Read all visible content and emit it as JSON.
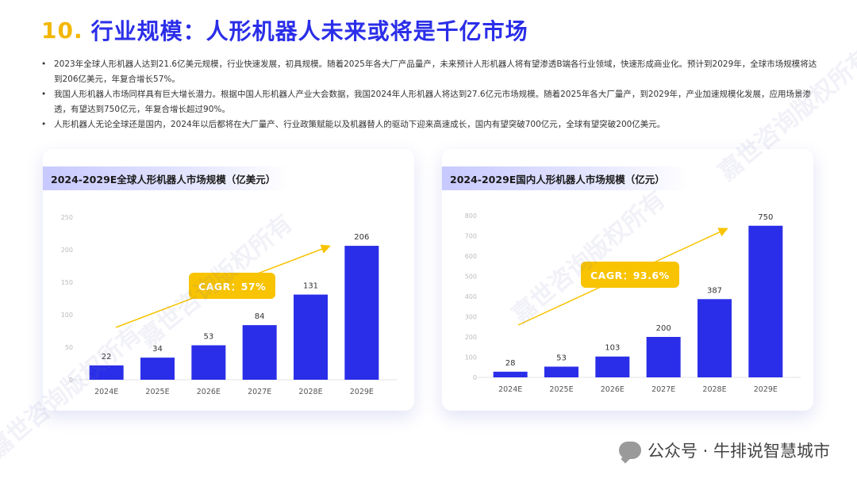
{
  "header": {
    "number": "10.",
    "title": "行业规模：人形机器人未来或将是千亿市场"
  },
  "bullets": [
    "2023年全球人形机器人达到21.6亿美元规模，行业快速发展，初具规模。随着2025年各大厂产品量产，未来预计人形机器人将有望渗透B端各行业领域，快速形成商业化。预计到2029年，全球市场规模将达到206亿美元，年复合增长57%。",
    "我国人形机器人市场同样具有巨大增长潜力。根据中国人形机器人产业大会数据，我国2024年人形机器人将达到27.6亿元市场规模。随着2025年各大厂量产，到2029年，产业加速规模化发展，应用场景渗透，有望达到750亿元，年复合增长超过90%。",
    "人形机器人无论全球还是国内，2024年以后都将在大厂量产、行业政策赋能以及机器替人的驱动下迎来高速成长，国内有望突破700亿元，全球有望突破200亿美元。"
  ],
  "watermark": "嘉世咨询版权所有",
  "footer": {
    "text": "公众号 · 牛排说智慧城市"
  },
  "colors": {
    "bar": "#2b2ee8",
    "accent": "#f8c300",
    "title": "#2b2ee8"
  },
  "chart_data": [
    {
      "type": "bar",
      "title": "2024-2029E全球人形机器人市场规模（亿美元）",
      "categories": [
        "2024E",
        "2025E",
        "2026E",
        "2027E",
        "2028E",
        "2029E"
      ],
      "values": [
        22,
        34,
        53,
        84,
        131,
        206
      ],
      "ylim": [
        0,
        250
      ],
      "yticks": [
        0,
        50,
        100,
        150,
        200,
        250
      ],
      "annotation": "CAGR：57%",
      "grid": false
    },
    {
      "type": "bar",
      "title": "2024-2029E国内人形机器人市场规模（亿元）",
      "categories": [
        "2024E",
        "2025E",
        "2026E",
        "2027E",
        "2028E",
        "2029E"
      ],
      "values": [
        28,
        53,
        103,
        200,
        387,
        750
      ],
      "ylim": [
        0,
        800
      ],
      "yticks": [
        0,
        100,
        200,
        300,
        400,
        500,
        600,
        700,
        800
      ],
      "annotation": "CAGR：93.6%",
      "grid": false
    }
  ]
}
